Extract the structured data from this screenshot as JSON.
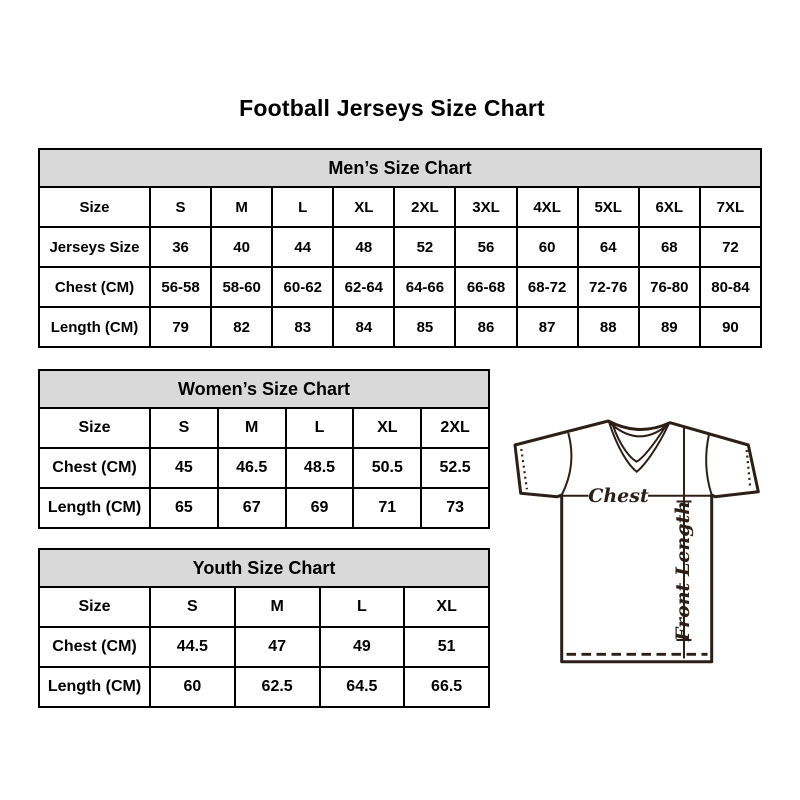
{
  "title": "Football Jerseys Size Chart",
  "chart_data": [
    {
      "type": "table",
      "title": "Men’s Size Chart",
      "rows": [
        [
          "Size",
          "S",
          "M",
          "L",
          "XL",
          "2XL",
          "3XL",
          "4XL",
          "5XL",
          "6XL",
          "7XL"
        ],
        [
          "Jerseys Size",
          "36",
          "40",
          "44",
          "48",
          "52",
          "56",
          "60",
          "64",
          "68",
          "72"
        ],
        [
          "Chest (CM)",
          "56-58",
          "58-60",
          "60-62",
          "62-64",
          "64-66",
          "66-68",
          "68-72",
          "72-76",
          "76-80",
          "80-84"
        ],
        [
          "Length (CM)",
          "79",
          "82",
          "83",
          "84",
          "85",
          "86",
          "87",
          "88",
          "89",
          "90"
        ]
      ]
    },
    {
      "type": "table",
      "title": "Women’s Size Chart",
      "rows": [
        [
          "Size",
          "S",
          "M",
          "L",
          "XL",
          "2XL"
        ],
        [
          "Chest (CM)",
          "45",
          "46.5",
          "48.5",
          "50.5",
          "52.5"
        ],
        [
          "Length (CM)",
          "65",
          "67",
          "69",
          "71",
          "73"
        ]
      ]
    },
    {
      "type": "table",
      "title": "Youth Size Chart",
      "rows": [
        [
          "Size",
          "S",
          "M",
          "L",
          "XL"
        ],
        [
          "Chest (CM)",
          "44.5",
          "47",
          "49",
          "51"
        ],
        [
          "Length (CM)",
          "60",
          "62.5",
          "64.5",
          "66.5"
        ]
      ]
    }
  ],
  "diagram": {
    "chest_label": "Chest",
    "front_length_label": "Front Length"
  },
  "colors": {
    "header_bg": "#d9d9d9",
    "border": "#000000",
    "text": "#000000",
    "bg": "#ffffff",
    "diagram_line": "#2b1f18"
  }
}
